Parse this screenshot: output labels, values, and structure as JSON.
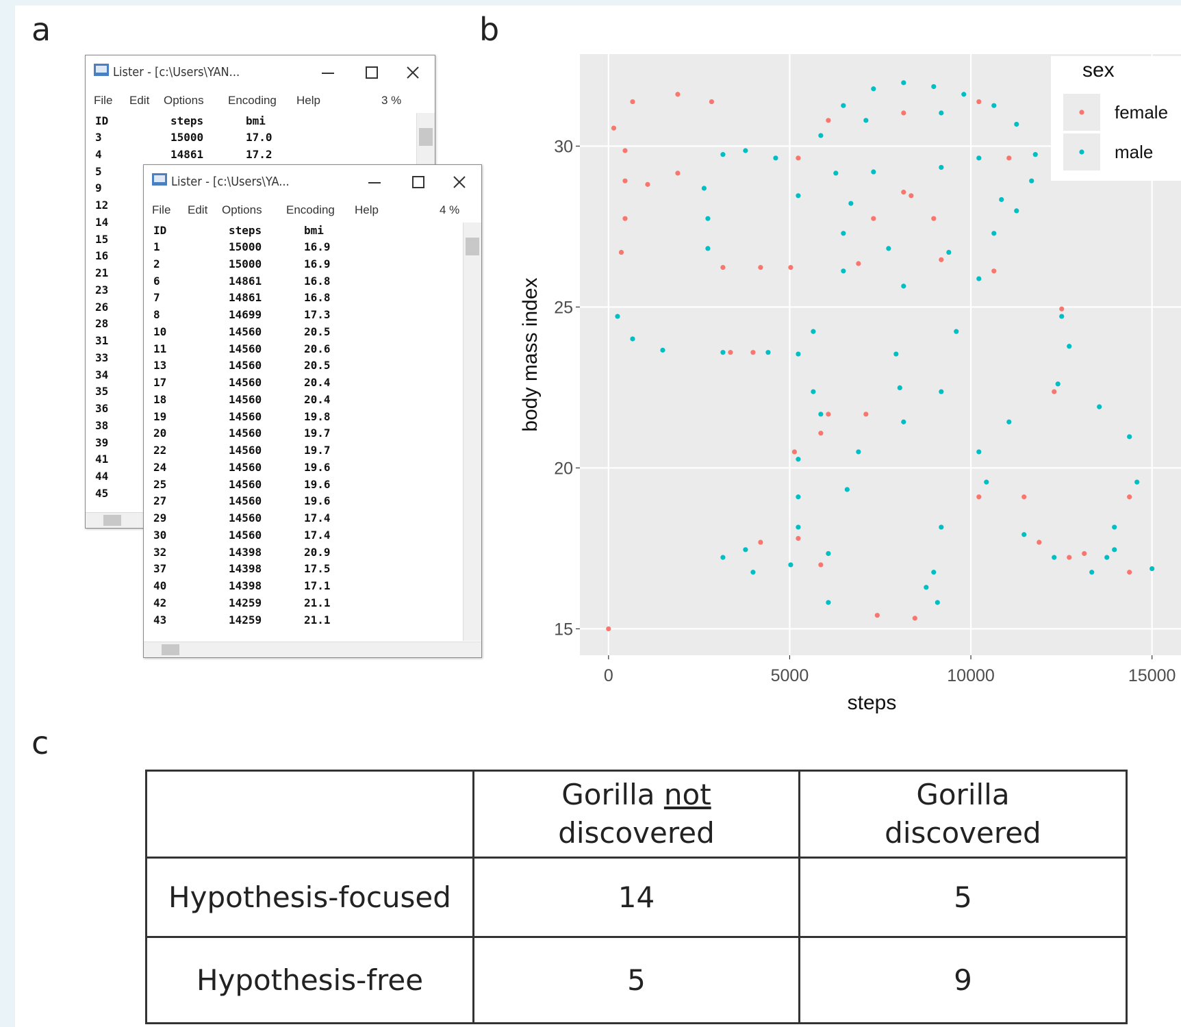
{
  "panel_labels": {
    "a": "a",
    "b": "b",
    "c": "c"
  },
  "lister_back": {
    "title": "Lister - [c:\\Users\\YAN...",
    "menu": [
      "File",
      "Edit",
      "Options",
      "Encoding",
      "Help",
      "3 %"
    ],
    "header": [
      "ID",
      "steps",
      "bmi"
    ],
    "rows": [
      [
        "3",
        "15000",
        "17.0"
      ],
      [
        "4",
        "14861",
        "17.2"
      ]
    ],
    "more_ids": [
      "5",
      "9",
      "12",
      "14",
      "15",
      "16",
      "21",
      "23",
      "26",
      "28",
      "31",
      "33",
      "34",
      "35",
      "36",
      "38",
      "39",
      "41",
      "44",
      "45"
    ]
  },
  "lister_front": {
    "title": "Lister - [c:\\Users\\YA...",
    "menu": [
      "File",
      "Edit",
      "Options",
      "Encoding",
      "Help",
      "4 %"
    ],
    "header": [
      "ID",
      "steps",
      "bmi"
    ],
    "rows": [
      [
        "1",
        "15000",
        "16.9"
      ],
      [
        "2",
        "15000",
        "16.9"
      ],
      [
        "6",
        "14861",
        "16.8"
      ],
      [
        "7",
        "14861",
        "16.8"
      ],
      [
        "8",
        "14699",
        "17.3"
      ],
      [
        "10",
        "14560",
        "20.5"
      ],
      [
        "11",
        "14560",
        "20.6"
      ],
      [
        "13",
        "14560",
        "20.5"
      ],
      [
        "17",
        "14560",
        "20.4"
      ],
      [
        "18",
        "14560",
        "20.4"
      ],
      [
        "19",
        "14560",
        "19.8"
      ],
      [
        "20",
        "14560",
        "19.7"
      ],
      [
        "22",
        "14560",
        "19.7"
      ],
      [
        "24",
        "14560",
        "19.6"
      ],
      [
        "25",
        "14560",
        "19.6"
      ],
      [
        "27",
        "14560",
        "19.6"
      ],
      [
        "29",
        "14560",
        "17.4"
      ],
      [
        "30",
        "14560",
        "17.4"
      ],
      [
        "32",
        "14398",
        "20.9"
      ],
      [
        "37",
        "14398",
        "17.5"
      ],
      [
        "40",
        "14398",
        "17.1"
      ],
      [
        "42",
        "14259",
        "21.1"
      ],
      [
        "43",
        "14259",
        "21.1"
      ]
    ]
  },
  "chart_data": {
    "type": "scatter",
    "x_label": "steps",
    "y_label": "body mass index",
    "xlim": [
      -790,
      15800
    ],
    "ylim": [
      14.18,
      32.86
    ],
    "xticks": [
      0,
      5000,
      10000,
      15000
    ],
    "yticks": [
      15,
      20,
      25,
      30
    ],
    "grid": true,
    "legend_title": "sex",
    "legend_position": "top-right",
    "series": [
      {
        "name": "female",
        "color": "#F8766D",
        "x": [
          0,
          145,
          457,
          665,
          1911,
          2846,
          457,
          457,
          353,
          1080,
          1911,
          3158,
          4197,
          5028,
          3366,
          3989,
          6067,
          8144,
          10222,
          5236,
          11053,
          8352,
          7313,
          8975,
          8144,
          6898,
          9183,
          7105,
          6067,
          5132,
          5859,
          10637,
          12507,
          12299,
          14377,
          11468,
          10222,
          4197,
          5236,
          5859,
          11884,
          12715,
          14377,
          13130,
          7417,
          8456
        ],
        "values": [
          15.0,
          30.56,
          29.86,
          31.38,
          31.61,
          31.38,
          28.92,
          27.75,
          26.7,
          28.81,
          29.16,
          26.23,
          26.23,
          26.23,
          23.59,
          23.59,
          30.8,
          31.03,
          31.38,
          29.63,
          29.63,
          28.46,
          27.75,
          27.75,
          28.57,
          26.35,
          26.47,
          21.67,
          21.67,
          20.5,
          21.08,
          26.12,
          24.94,
          22.37,
          19.1,
          19.1,
          19.1,
          17.69,
          17.81,
          16.99,
          17.69,
          17.22,
          16.76,
          17.34,
          15.42,
          15.33
        ]
      },
      {
        "name": "male",
        "color": "#00BFC4",
        "x": [
          5859,
          6482,
          7313,
          8144,
          8975,
          9806,
          10637,
          11261,
          11780,
          6274,
          10222,
          6690,
          10845,
          6482,
          7729,
          9391,
          10637,
          7313,
          9183,
          6482,
          8144,
          10222,
          2742,
          2742,
          2638,
          3158,
          3781,
          249,
          665,
          1496,
          3158,
          4405,
          5236,
          5651,
          5651,
          5859,
          5236,
          5236,
          5236,
          7936,
          8040,
          6898,
          6586,
          9598,
          9183,
          8144,
          10222,
          9183,
          8975,
          12507,
          12715,
          12403,
          13546,
          14377,
          14585,
          13962,
          13754,
          11053,
          10430,
          3158,
          3989,
          5028,
          6067,
          3781,
          11468,
          12299,
          13338,
          15000,
          13962,
          6067,
          8767,
          9079,
          7105,
          9183,
          11676,
          11261,
          4613,
          5236
        ],
        "values": [
          30.33,
          31.26,
          31.78,
          31.97,
          31.85,
          31.61,
          31.26,
          30.68,
          29.74,
          29.16,
          29.63,
          28.22,
          28.34,
          27.29,
          26.82,
          26.7,
          27.29,
          29.2,
          29.34,
          26.12,
          25.65,
          25.88,
          26.82,
          27.75,
          28.69,
          29.74,
          29.86,
          24.71,
          24.01,
          23.66,
          23.59,
          23.59,
          23.54,
          24.24,
          22.37,
          21.67,
          20.27,
          19.1,
          18.16,
          23.54,
          22.49,
          20.5,
          19.33,
          24.24,
          22.37,
          21.43,
          20.5,
          18.16,
          16.76,
          24.71,
          23.78,
          22.61,
          21.9,
          20.97,
          19.56,
          18.16,
          17.22,
          21.43,
          19.56,
          17.22,
          16.76,
          16.99,
          17.34,
          17.46,
          17.93,
          17.22,
          16.76,
          16.87,
          17.46,
          15.82,
          16.29,
          15.82,
          30.8,
          31.03,
          28.92,
          27.99,
          29.63,
          28.46
        ]
      }
    ]
  },
  "table": {
    "columns": [
      [
        "Gorilla",
        "not",
        "discovered"
      ],
      "Gorilla discovered"
    ],
    "rows": [
      [
        "Hypothesis-focused",
        14,
        5
      ],
      [
        "Hypothesis-free",
        5,
        9
      ]
    ]
  }
}
